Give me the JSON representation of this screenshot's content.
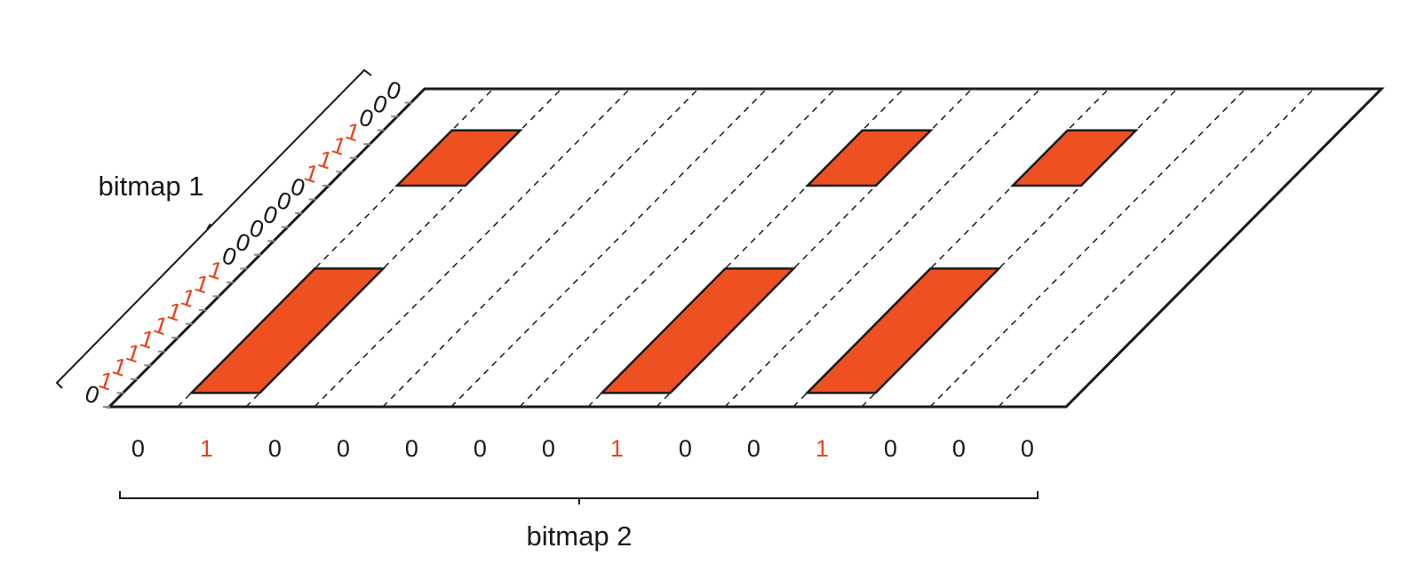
{
  "colors": {
    "block_fill": "#ee5022",
    "highlight_bit": "#e8441e",
    "plain_bit": "#1a1a1a",
    "stroke": "#1a1a1a"
  },
  "labels": {
    "bitmap1": "bitmap 1",
    "bitmap2": "bitmap 2"
  },
  "bitmap1_bits": [
    "0",
    "1",
    "1",
    "1",
    "1",
    "1",
    "1",
    "1",
    "1",
    "1",
    "0",
    "0",
    "0",
    "0",
    "0",
    "0",
    "1",
    "1",
    "1",
    "1",
    "0",
    "0",
    "0"
  ],
  "bitmap2_bits": [
    "0",
    "1",
    "0",
    "0",
    "0",
    "0",
    "0",
    "1",
    "0",
    "0",
    "1",
    "0",
    "0",
    "0"
  ]
}
